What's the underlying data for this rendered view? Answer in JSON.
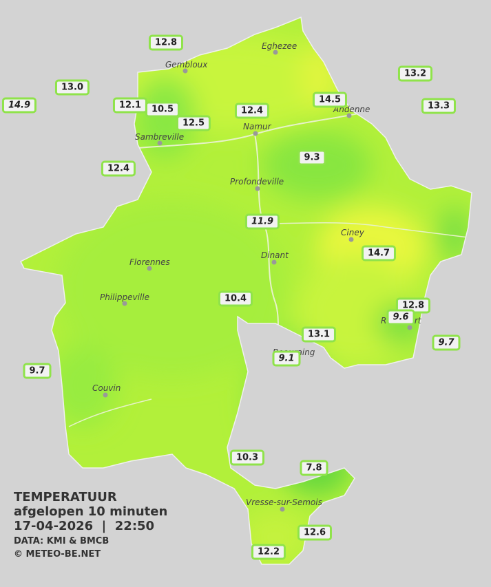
{
  "stations": [
    {
      "value": "12.8"
    },
    {
      "value": "13.0"
    },
    {
      "value": "14.9",
      "italic": true
    },
    {
      "value": "12.1"
    },
    {
      "value": "10.5"
    },
    {
      "value": "12.5"
    },
    {
      "value": "12.4"
    },
    {
      "value": "14.5"
    },
    {
      "value": "13.2"
    },
    {
      "value": "13.3"
    },
    {
      "value": "12.4"
    },
    {
      "value": "9.3"
    },
    {
      "value": "11.9",
      "italic": true
    },
    {
      "value": "14.7"
    },
    {
      "value": "10.4"
    },
    {
      "value": "12.8"
    },
    {
      "value": "9.6",
      "italic": true
    },
    {
      "value": "13.1"
    },
    {
      "value": "9.7",
      "italic": true
    },
    {
      "value": "9.1",
      "italic": true
    },
    {
      "value": "9.7"
    },
    {
      "value": "10.3"
    },
    {
      "value": "7.8"
    },
    {
      "value": "12.6"
    },
    {
      "value": "12.2"
    }
  ],
  "cities": [
    "Eghezee",
    "Gembloux",
    "Andenne",
    "Namur",
    "Sambreville",
    "Profondeville",
    "Ciney",
    "Dinant",
    "Florennes",
    "Philippeville",
    "Rochefort",
    "Beauraing",
    "Couvin",
    "Vresse-sur-Semois"
  ],
  "legend": {
    "title": "TEMPERATUUR",
    "subtitle": "afgelopen 10 minuten",
    "datetime": "17-04-2026  |  22:50",
    "source": "DATA: KMI & BMCB",
    "copyright": "© METEO-BE.NET"
  }
}
